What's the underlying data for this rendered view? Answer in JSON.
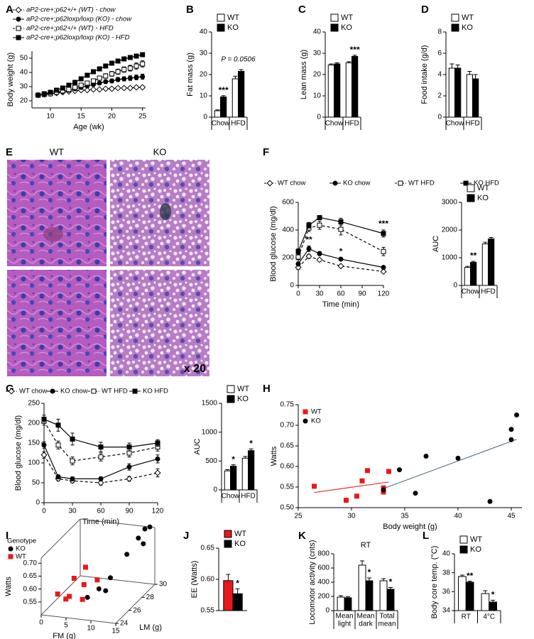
{
  "chart_data": [
    {
      "panel": "A",
      "type": "line",
      "xlabel": "Age (wk)",
      "ylabel": "Body weight (g)",
      "x": [
        8,
        9,
        10,
        11,
        12,
        13,
        14,
        15,
        16,
        17,
        18,
        19,
        20,
        21,
        22,
        23,
        24,
        25
      ],
      "xlim": [
        7,
        25.5
      ],
      "xticks": [
        10,
        15,
        20,
        25
      ],
      "ylim": [
        15,
        55
      ],
      "yticks": [
        20,
        30,
        40,
        50
      ],
      "series": [
        {
          "name": "aP2-cre+;p62+/+ (WT) - chow",
          "color": "#000000",
          "marker": "diamond-open",
          "dash": true,
          "values": [
            24,
            24.5,
            25,
            25.5,
            26,
            26.5,
            27,
            27.5,
            27.5,
            28,
            28,
            28.5,
            28.5,
            29,
            29,
            29,
            29.5,
            29.5
          ],
          "errors": [
            0.5,
            0.5,
            0.5,
            0.6,
            0.6,
            0.6,
            0.7,
            0.7,
            0.7,
            0.8,
            0.8,
            0.8,
            0.9,
            0.9,
            0.9,
            1,
            1,
            1
          ]
        },
        {
          "name": "aP2-cre+;p62loxp/loxp (KO) - chow",
          "color": "#000000",
          "marker": "circle",
          "dash": false,
          "values": [
            24,
            24.5,
            25,
            25.5,
            26.5,
            27.5,
            28.5,
            29.5,
            30.5,
            31.5,
            32.5,
            33.5,
            34,
            35,
            35.5,
            36,
            36.5,
            37
          ],
          "errors": [
            0.5,
            0.5,
            0.6,
            0.6,
            0.7,
            0.8,
            0.9,
            1,
            1,
            1.1,
            1.2,
            1.3,
            1.4,
            1.5,
            1.5,
            1.6,
            1.7,
            1.8
          ]
        },
        {
          "name": "aP2-cre+;p62+/+ (WT) - HFD",
          "color": "#000000",
          "marker": "square-open",
          "dash": true,
          "values": [
            24,
            24.5,
            25,
            26,
            27,
            28,
            29.5,
            31,
            32.5,
            34,
            36,
            37.5,
            39,
            40.5,
            42,
            43,
            44.5,
            46
          ],
          "errors": [
            0.5,
            0.6,
            0.7,
            0.8,
            0.9,
            1,
            1.1,
            1.2,
            1.3,
            1.4,
            1.5,
            1.6,
            1.7,
            1.8,
            1.9,
            2,
            2.1,
            2.2
          ]
        },
        {
          "name": "aP2-cre+;p62loxp/loxp (KO) - HFD",
          "color": "#000000",
          "marker": "square",
          "dash": false,
          "values": [
            24,
            25,
            26,
            27.5,
            29,
            31,
            33,
            35.5,
            38,
            40.5,
            42.5,
            44.5,
            46.5,
            48,
            49.5,
            50.5,
            51.5,
            52.5
          ],
          "errors": [
            0.5,
            0.6,
            0.7,
            0.8,
            0.9,
            1,
            1,
            1.1,
            1.1,
            1.2,
            1.2,
            1.3,
            1.3,
            1.4,
            1.4,
            1.5,
            1.5,
            1.5
          ]
        }
      ]
    },
    {
      "panel": "B",
      "type": "bar",
      "ylabel": "Fat mass (g)",
      "categories": [
        "Chow",
        "HFD"
      ],
      "ylim": [
        0,
        40
      ],
      "yticks": [
        0,
        10,
        20,
        30,
        40
      ],
      "group_notes": [
        null,
        "P = 0.0506"
      ],
      "series": [
        {
          "name": "WT",
          "color": "#ffffff",
          "values": [
            3,
            18
          ],
          "errors": [
            0.4,
            1.2
          ]
        },
        {
          "name": "KO",
          "color": "#000000",
          "values": [
            9.5,
            21.5
          ],
          "errors": [
            0.6,
            0.8
          ],
          "stars": [
            "***",
            null
          ]
        }
      ]
    },
    {
      "panel": "C",
      "type": "bar",
      "ylabel": "Lean mass (g)",
      "categories": [
        "Chow",
        "HFD"
      ],
      "ylim": [
        0,
        40
      ],
      "yticks": [
        0,
        10,
        20,
        30,
        40
      ],
      "series": [
        {
          "name": "WT",
          "color": "#ffffff",
          "values": [
            24.5,
            25.5
          ],
          "errors": [
            0.5,
            0.6
          ]
        },
        {
          "name": "KO",
          "color": "#000000",
          "values": [
            25,
            28.5
          ],
          "errors": [
            0.5,
            0.6
          ],
          "stars": [
            null,
            "***"
          ]
        }
      ]
    },
    {
      "panel": "D",
      "type": "bar",
      "ylabel": "Food intake (g/d)",
      "categories": [
        "Chow",
        "HFD"
      ],
      "ylim": [
        0,
        8
      ],
      "yticks": [
        0,
        2,
        4,
        6,
        8
      ],
      "series": [
        {
          "name": "WT",
          "color": "#ffffff",
          "values": [
            4.6,
            4.0
          ],
          "errors": [
            0.4,
            0.3
          ]
        },
        {
          "name": "KO",
          "color": "#000000",
          "values": [
            4.6,
            3.6
          ],
          "errors": [
            0.3,
            0.4
          ]
        }
      ]
    },
    {
      "panel": "E",
      "type": "image",
      "labels": [
        "WT",
        "KO"
      ],
      "magnification": "x 20"
    },
    {
      "panel": "F",
      "type": "line",
      "xlabel": "Time (min)",
      "ylabel": "Blood glucose (mg/dl)",
      "x": [
        0,
        15,
        30,
        60,
        120
      ],
      "xlim": [
        0,
        120
      ],
      "xticks": [
        0,
        30,
        60,
        90,
        120
      ],
      "ylim": [
        0,
        600
      ],
      "yticks": [
        0,
        200,
        400,
        600
      ],
      "series": [
        {
          "name": "WT chow",
          "color": "#000000",
          "marker": "diamond-open",
          "dash": true,
          "values": [
            130,
            210,
            185,
            140,
            100
          ],
          "errors": [
            15,
            15,
            10,
            8,
            8
          ]
        },
        {
          "name": "KO chow",
          "color": "#000000",
          "marker": "circle",
          "dash": false,
          "values": [
            155,
            265,
            230,
            190,
            130
          ],
          "errors": [
            15,
            20,
            15,
            10,
            8
          ],
          "stars": [
            null,
            "**",
            null,
            "*",
            null
          ]
        },
        {
          "name": "WT HFD",
          "color": "#000000",
          "marker": "square-open",
          "dash": true,
          "values": [
            205,
            415,
            435,
            405,
            245
          ],
          "errors": [
            20,
            25,
            30,
            40,
            30
          ]
        },
        {
          "name": "KO HFD",
          "color": "#000000",
          "marker": "square",
          "dash": false,
          "values": [
            245,
            435,
            490,
            460,
            375
          ],
          "errors": [
            20,
            20,
            15,
            25,
            25
          ],
          "stars": [
            null,
            null,
            null,
            null,
            "***"
          ]
        }
      ]
    },
    {
      "type": "bar",
      "ylabel": "AUC",
      "categories": [
        "Chow",
        "HFD"
      ],
      "ylim": [
        0,
        3000
      ],
      "yticks": [
        0,
        1000,
        2000,
        3000
      ],
      "series": [
        {
          "name": "WT",
          "color": "#ffffff",
          "values": [
            650,
            1500
          ],
          "errors": [
            40,
            60
          ]
        },
        {
          "name": "KO",
          "color": "#000000",
          "values": [
            830,
            1680
          ],
          "errors": [
            40,
            50
          ],
          "stars": [
            "**",
            null
          ]
        }
      ]
    },
    {
      "panel": "G",
      "type": "line",
      "xlabel": "Time (min)",
      "ylabel": "Blood glucose (mg/dl)",
      "x": [
        0,
        15,
        30,
        60,
        90,
        120
      ],
      "xlim": [
        0,
        120
      ],
      "xticks": [
        0,
        30,
        60,
        90,
        120
      ],
      "ylim": [
        0,
        250
      ],
      "yticks": [
        0,
        50,
        100,
        150,
        200,
        250
      ],
      "series": [
        {
          "name": "WT chow",
          "color": "#000000",
          "marker": "diamond-open",
          "dash": true,
          "values": [
            120,
            60,
            55,
            50,
            60,
            75
          ],
          "errors": [
            8,
            5,
            5,
            6,
            6,
            10
          ]
        },
        {
          "name": "KO chow",
          "color": "#000000",
          "marker": "circle",
          "dash": false,
          "values": [
            145,
            65,
            60,
            60,
            90,
            110
          ],
          "errors": [
            8,
            5,
            5,
            5,
            8,
            10
          ]
        },
        {
          "name": "WT HFD",
          "color": "#000000",
          "marker": "square-open",
          "dash": true,
          "values": [
            205,
            145,
            105,
            115,
            125,
            140
          ],
          "errors": [
            10,
            10,
            10,
            10,
            10,
            10
          ]
        },
        {
          "name": "KO HFD",
          "color": "#000000",
          "marker": "square",
          "dash": false,
          "values": [
            210,
            195,
            160,
            140,
            140,
            150
          ],
          "errors": [
            10,
            15,
            15,
            12,
            10,
            8
          ]
        }
      ]
    },
    {
      "type": "bar",
      "ylabel": "AUC",
      "categories": [
        "Chow",
        "HFD"
      ],
      "ylim": [
        0,
        1500
      ],
      "yticks": [
        0,
        500,
        1000,
        1500
      ],
      "series": [
        {
          "name": "WT",
          "color": "#ffffff",
          "values": [
            330,
            550
          ],
          "errors": [
            20,
            30
          ],
          "stars": [
            null,
            null
          ]
        },
        {
          "name": "KO",
          "color": "#000000",
          "values": [
            410,
            680
          ],
          "errors": [
            25,
            30
          ],
          "stars": [
            "*",
            "*"
          ]
        }
      ]
    },
    {
      "panel": "H",
      "type": "scatter",
      "xlabel": "Body weight (g)",
      "ylabel": "Watts",
      "xlim": [
        25,
        46
      ],
      "xticks": [
        25,
        30,
        35,
        40,
        45
      ],
      "ylim": [
        0.5,
        0.75
      ],
      "yticks": [
        {
          "value": 0.5,
          "label": "0.50"
        },
        0.55,
        {
          "value": 0.6,
          "label": "0.60"
        },
        0.65,
        {
          "value": 0.7,
          "label": "0.70"
        },
        0.75
      ],
      "series": [
        {
          "name": "WT",
          "color": "#e8191c",
          "marker": "square",
          "x": [
            26.5,
            29.5,
            30.5,
            31,
            31.5,
            33,
            33,
            33.5
          ],
          "values": [
            0.552,
            0.518,
            0.528,
            0.565,
            0.59,
            0.548,
            0.538,
            0.588
          ]
        },
        {
          "name": "KO",
          "color": "#000000",
          "marker": "circle",
          "x": [
            33,
            34.5,
            36,
            37,
            40,
            43,
            45,
            45,
            45.5
          ],
          "values": [
            0.543,
            0.592,
            0.535,
            0.625,
            0.62,
            0.515,
            0.665,
            0.69,
            0.725
          ]
        }
      ]
    },
    {
      "panel": "I",
      "type": "scatter3d",
      "legend_title": "Genotype",
      "xlabel": "FM (g)",
      "zlabel": "LM (g)",
      "ylabel": "Watts",
      "xlim": [
        0,
        15
      ],
      "xticks": [
        0,
        5,
        10,
        15
      ],
      "zlim": [
        24,
        30
      ],
      "zticks": [
        24,
        26,
        28,
        30
      ],
      "ylim": [
        0.5,
        0.72
      ],
      "yticks": [
        0.55,
        {
          "value": 0.6,
          "label": "0.60"
        },
        0.65,
        {
          "value": 0.7,
          "label": "0.70"
        }
      ],
      "series": [
        {
          "name": "KO",
          "color": "#000000",
          "marker": "circle",
          "x": [
            8,
            9,
            10,
            11,
            12,
            13,
            14,
            13,
            14
          ],
          "z": [
            25,
            26,
            27,
            25.5,
            28,
            29,
            29,
            30,
            30
          ],
          "values": [
            0.56,
            0.57,
            0.59,
            0.58,
            0.66,
            0.7,
            0.68,
            0.71,
            0.72
          ]
        },
        {
          "name": "WT",
          "color": "#e8191c",
          "marker": "square",
          "x": [
            2,
            3,
            4,
            5,
            6,
            7,
            5,
            8
          ],
          "z": [
            25,
            25.5,
            26,
            24.5,
            26,
            25,
            27,
            26.5
          ],
          "values": [
            0.56,
            0.53,
            0.6,
            0.57,
            0.58,
            0.55,
            0.62,
            0.59
          ]
        }
      ]
    },
    {
      "panel": "J",
      "type": "bar",
      "ylabel": "EE (Watts)",
      "categories": [
        null
      ],
      "ylim": [
        0.55,
        0.65
      ],
      "yticks": [
        0.55,
        {
          "value": 0.6,
          "label": "0.60"
        },
        0.65
      ],
      "series": [
        {
          "name": "WT",
          "color": "#e8191c",
          "values": [
            0.598
          ],
          "errors": [
            0.01
          ]
        },
        {
          "name": "KO",
          "color": "#000000",
          "values": [
            0.577
          ],
          "errors": [
            0.008
          ],
          "stars": [
            "*"
          ]
        }
      ]
    },
    {
      "panel": "K",
      "type": "bar",
      "title": "RT",
      "ylabel": "Locomotor activity (cnts)",
      "categories": [
        [
          "Mean",
          "light"
        ],
        [
          "Mean",
          "dark"
        ],
        [
          "Total",
          "mean"
        ]
      ],
      "ylim": [
        0,
        800
      ],
      "yticks": [
        0,
        200,
        400,
        600,
        800
      ],
      "series": [
        {
          "color": "#ffffff",
          "values": [
            190,
            640,
            420
          ],
          "errors": [
            20,
            60,
            30
          ]
        },
        {
          "color": "#000000",
          "values": [
            180,
            420,
            300
          ],
          "errors": [
            15,
            40,
            25
          ],
          "stars": [
            null,
            "*",
            "*"
          ]
        }
      ]
    },
    {
      "panel": "L",
      "type": "bar",
      "ylabel": "Body core temp. (°C)",
      "categories": [
        "RT",
        "4°C"
      ],
      "ylim": [
        34,
        40
      ],
      "yticks": [
        34,
        36,
        38,
        40
      ],
      "series": [
        {
          "name": "WT",
          "color": "#ffffff",
          "values": [
            37.6,
            35.8
          ],
          "errors": [
            0.15,
            0.3
          ]
        },
        {
          "name": "KO",
          "color": "#000000",
          "values": [
            37.0,
            34.9
          ],
          "errors": [
            0.1,
            0.2
          ],
          "stars": [
            "**",
            "*"
          ]
        }
      ]
    }
  ]
}
